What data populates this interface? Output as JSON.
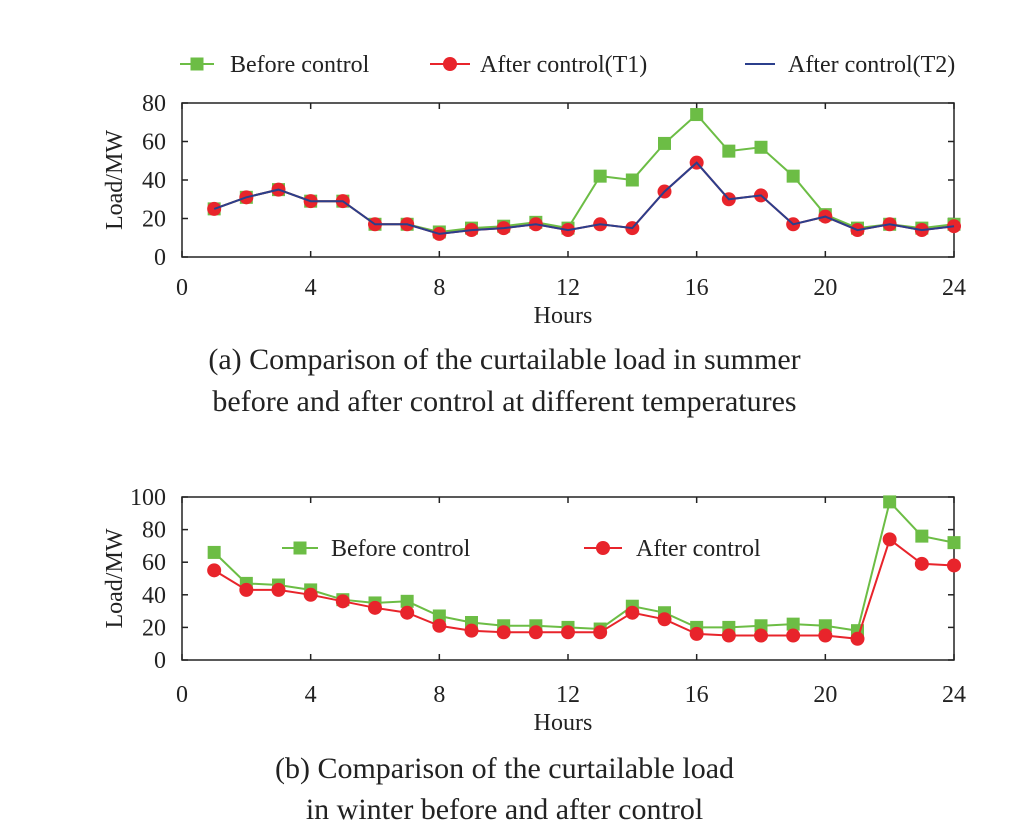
{
  "colors": {
    "before": "#6cbd45",
    "after": "#e8242b",
    "after_t2": "#2b3f8c",
    "axis": "#222222"
  },
  "chart_data": [
    {
      "type": "line",
      "title": "(a) Comparison of the curtailable load in summer before and after control at different temperatures",
      "caption_lines": [
        "(a) Comparison of the curtailable load in summer",
        "before and after control at different temperatures"
      ],
      "xlabel": "Hours",
      "ylabel": "Load/MW",
      "xlim": [
        0,
        24
      ],
      "ylim": [
        0,
        80
      ],
      "xticks": [
        0,
        4,
        8,
        12,
        16,
        20,
        24
      ],
      "yticks": [
        0,
        20,
        40,
        60,
        80
      ],
      "grid": false,
      "legend_position": "top-outside",
      "x": [
        1,
        2,
        3,
        4,
        5,
        6,
        7,
        8,
        9,
        10,
        11,
        12,
        13,
        14,
        15,
        16,
        17,
        18,
        19,
        20,
        21,
        22,
        23,
        24
      ],
      "series": [
        {
          "name": "Before control",
          "marker": "square",
          "color": "#6cbd45",
          "values": [
            25,
            31,
            35,
            29,
            29,
            17,
            17,
            13,
            15,
            16,
            18,
            15,
            42,
            40,
            59,
            74,
            55,
            57,
            42,
            22,
            15,
            17,
            15,
            17
          ]
        },
        {
          "name": "After control(T1)",
          "marker": "circle",
          "color": "#e8242b",
          "values": [
            25,
            31,
            35,
            29,
            29,
            17,
            17,
            12,
            14,
            15,
            17,
            14,
            17,
            15,
            34,
            49,
            30,
            32,
            17,
            21,
            14,
            17,
            14,
            16
          ]
        },
        {
          "name": "After control(T2)",
          "marker": "none",
          "color": "#2b3f8c",
          "values": [
            25,
            31,
            35,
            29,
            29,
            17,
            17,
            12,
            14,
            15,
            17,
            14,
            17,
            15,
            34,
            49,
            30,
            32,
            17,
            21,
            14,
            17,
            14,
            16
          ]
        }
      ]
    },
    {
      "type": "line",
      "title": "(b) Comparison of the curtailable load in winter before and after control",
      "caption_lines": [
        "(b) Comparison of the curtailable load",
        "in winter before and after control"
      ],
      "xlabel": "Hours",
      "ylabel": "Load/MW",
      "xlim": [
        0,
        24
      ],
      "ylim": [
        0,
        100
      ],
      "xticks": [
        0,
        4,
        8,
        12,
        16,
        20,
        24
      ],
      "yticks": [
        0,
        20,
        40,
        60,
        80,
        100
      ],
      "grid": false,
      "legend_position": "top-inside",
      "x": [
        1,
        2,
        3,
        4,
        5,
        6,
        7,
        8,
        9,
        10,
        11,
        12,
        13,
        14,
        15,
        16,
        17,
        18,
        19,
        20,
        21,
        22,
        23,
        24
      ],
      "series": [
        {
          "name": "Before control",
          "marker": "square",
          "color": "#6cbd45",
          "values": [
            66,
            47,
            46,
            43,
            37,
            35,
            36,
            27,
            23,
            21,
            21,
            20,
            19,
            33,
            29,
            20,
            20,
            21,
            22,
            21,
            18,
            97,
            76,
            72
          ]
        },
        {
          "name": "After control",
          "marker": "circle",
          "color": "#e8242b",
          "values": [
            55,
            43,
            43,
            40,
            36,
            32,
            29,
            21,
            18,
            17,
            17,
            17,
            17,
            29,
            25,
            16,
            15,
            15,
            15,
            15,
            13,
            74,
            59,
            58
          ]
        }
      ]
    }
  ]
}
